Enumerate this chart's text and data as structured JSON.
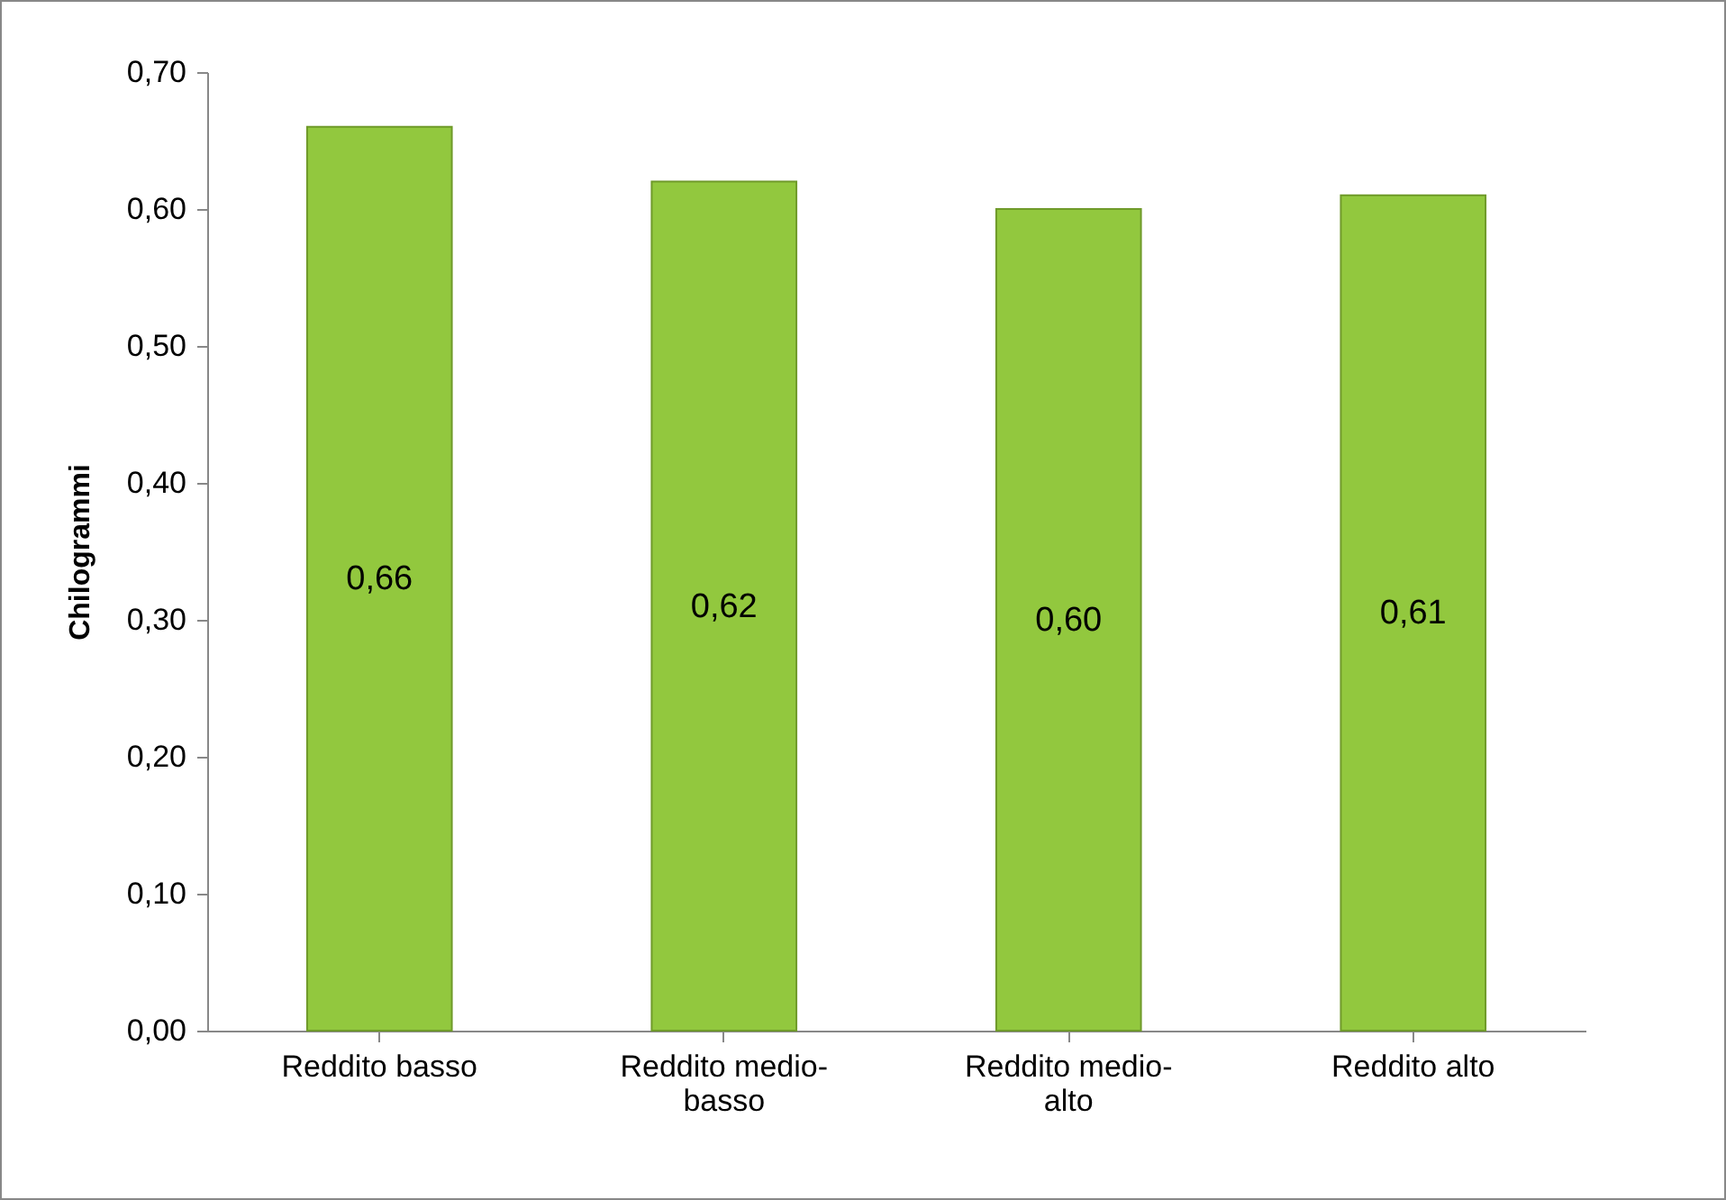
{
  "chart_data": {
    "type": "bar",
    "ylabel": "Chilogrammi",
    "categories": [
      "Reddito basso",
      "Reddito medio-basso",
      "Reddito medio-alto",
      "Reddito alto"
    ],
    "values": [
      0.66,
      0.62,
      0.6,
      0.61
    ],
    "value_labels": [
      "0,66",
      "0,62",
      "0,60",
      "0,61"
    ],
    "color": "#92c83e",
    "ylim": [
      0,
      0.7
    ],
    "yticks": [
      {
        "value": 0,
        "label": "0,00"
      },
      {
        "value": 0.1,
        "label": "0,10"
      },
      {
        "value": 0.2,
        "label": "0,20"
      },
      {
        "value": 0.3,
        "label": "0,30"
      },
      {
        "value": 0.4,
        "label": "0,40"
      },
      {
        "value": 0.5,
        "label": "0,50"
      },
      {
        "value": 0.6,
        "label": "0,60"
      },
      {
        "value": 0.7,
        "label": "0,70"
      }
    ],
    "grid": false
  }
}
